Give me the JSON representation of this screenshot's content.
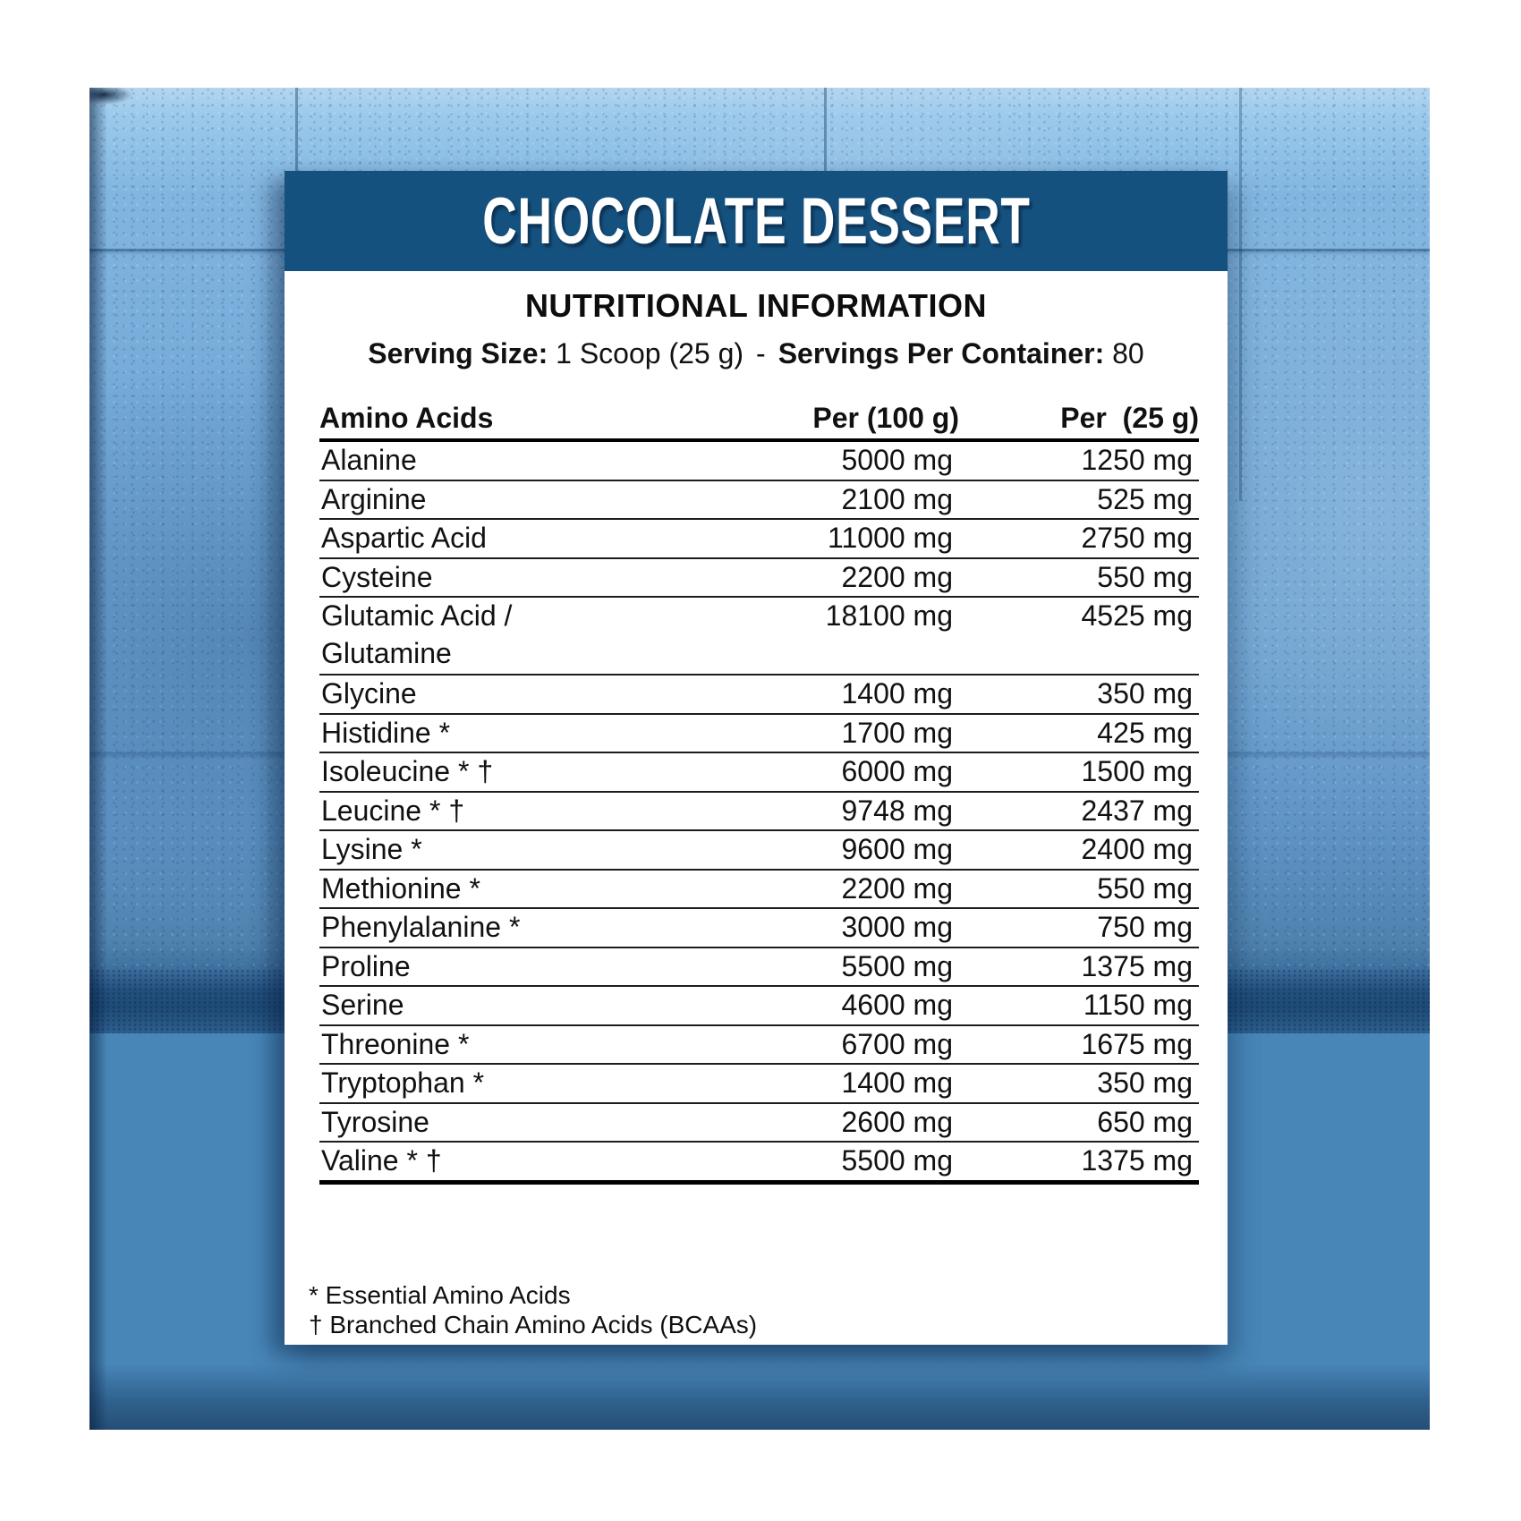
{
  "label": {
    "flavor_title": "CHOCOLATE DESSERT",
    "section_title": "NUTRITIONAL INFORMATION",
    "serving": {
      "size_label": "Serving Size:",
      "size_value": " 1 Scoop (25 g)",
      "separator": "-",
      "per_container_label": "Servings Per Container:",
      "per_container_value": " 80"
    },
    "table": {
      "columns": [
        "Amino Acids",
        "Per (100 g)",
        "Per  (25 g)"
      ],
      "rows": [
        {
          "name": "Alanine",
          "per100": "5000 mg",
          "per25": "1250 mg"
        },
        {
          "name": "Arginine",
          "per100": "2100 mg",
          "per25": "525 mg"
        },
        {
          "name": "Aspartic Acid",
          "per100": "11000 mg",
          "per25": "2750 mg"
        },
        {
          "name": "Cysteine",
          "per100": "2200 mg",
          "per25": "550 mg"
        },
        {
          "name": "Glutamic Acid /",
          "name2": "Glutamine",
          "per100": "18100 mg",
          "per25": "4525 mg"
        },
        {
          "name": "Glycine",
          "per100": "1400 mg",
          "per25": "350 mg"
        },
        {
          "name": "Histidine *",
          "per100": "1700 mg",
          "per25": "425 mg"
        },
        {
          "name": "Isoleucine * †",
          "per100": "6000 mg",
          "per25": "1500 mg"
        },
        {
          "name": "Leucine * †",
          "per100": "9748 mg",
          "per25": "2437 mg"
        },
        {
          "name": "Lysine *",
          "per100": "9600 mg",
          "per25": "2400 mg"
        },
        {
          "name": "Methionine *",
          "per100": "2200 mg",
          "per25": "550 mg"
        },
        {
          "name": "Phenylalanine *",
          "per100": "3000 mg",
          "per25": "750 mg"
        },
        {
          "name": "Proline",
          "per100": "5500 mg",
          "per25": "1375 mg"
        },
        {
          "name": "Serine",
          "per100": "4600 mg",
          "per25": "1150 mg"
        },
        {
          "name": "Threonine *",
          "per100": "6700 mg",
          "per25": "1675 mg"
        },
        {
          "name": "Tryptophan *",
          "per100": "1400 mg",
          "per25": "350 mg"
        },
        {
          "name": "Tyrosine",
          "per100": "2600 mg",
          "per25": "650 mg"
        },
        {
          "name": "Valine * †",
          "per100": "5500 mg",
          "per25": "1375 mg"
        }
      ]
    },
    "footnotes": [
      {
        "symbol": "*",
        "text": " Essential Amino Acids"
      },
      {
        "symbol": "†",
        "text": " Branched Chain Amino Acids (BCAAs)"
      }
    ],
    "colors": {
      "header_band": "#15517E",
      "card": "#FFFFFF",
      "text": "#111111",
      "wall_light": "#9CCAEC",
      "wall_mid": "#6FA5D3",
      "junction_dark": "#1E4A76",
      "floor": "#4886B8"
    }
  }
}
